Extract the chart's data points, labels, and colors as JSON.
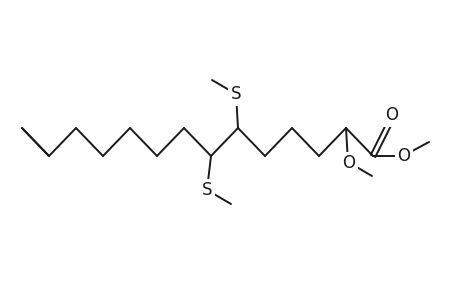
{
  "background_color": "#ffffff",
  "line_color": "#1a1a1a",
  "line_width": 1.4,
  "font_size": 12,
  "figsize": [
    4.6,
    3.0
  ],
  "dpi": 100,
  "xlim": [
    0,
    460
  ],
  "ylim": [
    0,
    300
  ],
  "y_center": 158,
  "x_start": 22,
  "step_x": 27,
  "amp": 14,
  "n_chain": 14
}
